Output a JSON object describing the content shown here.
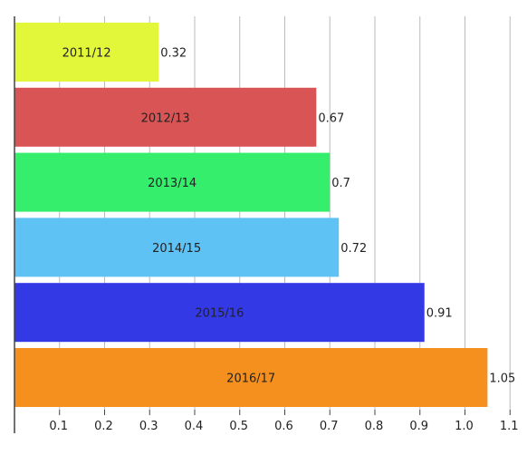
{
  "chart_data": {
    "type": "bar",
    "orientation": "horizontal",
    "categories": [
      "2011/12",
      "2012/13",
      "2013/14",
      "2014/15",
      "2015/16",
      "2016/17"
    ],
    "values": [
      0.32,
      0.67,
      0.7,
      0.72,
      0.91,
      1.05
    ],
    "value_labels": [
      "0.32",
      "0.67",
      "0.7",
      "0.72",
      "0.91",
      "1.05"
    ],
    "colors": [
      "#e3f73a",
      "#d95454",
      "#35ee6c",
      "#5ec2f5",
      "#3439e6",
      "#f5901f"
    ],
    "x_ticks": [
      0.1,
      0.2,
      0.3,
      0.4,
      0.5,
      0.6,
      0.7,
      0.8,
      0.9,
      1.0,
      1.1
    ],
    "x_tick_labels": [
      "0.1",
      "0.2",
      "0.3",
      "0.4",
      "0.5",
      "0.6",
      "0.7",
      "0.8",
      "0.9",
      "1.0",
      "1.1"
    ],
    "xlim": [
      0,
      1.1
    ],
    "title": "",
    "xlabel": "",
    "ylabel": "",
    "grid": "vertical lines",
    "legend": "none",
    "axis_color": "#444444",
    "grid_color": "#bbbbbb"
  }
}
